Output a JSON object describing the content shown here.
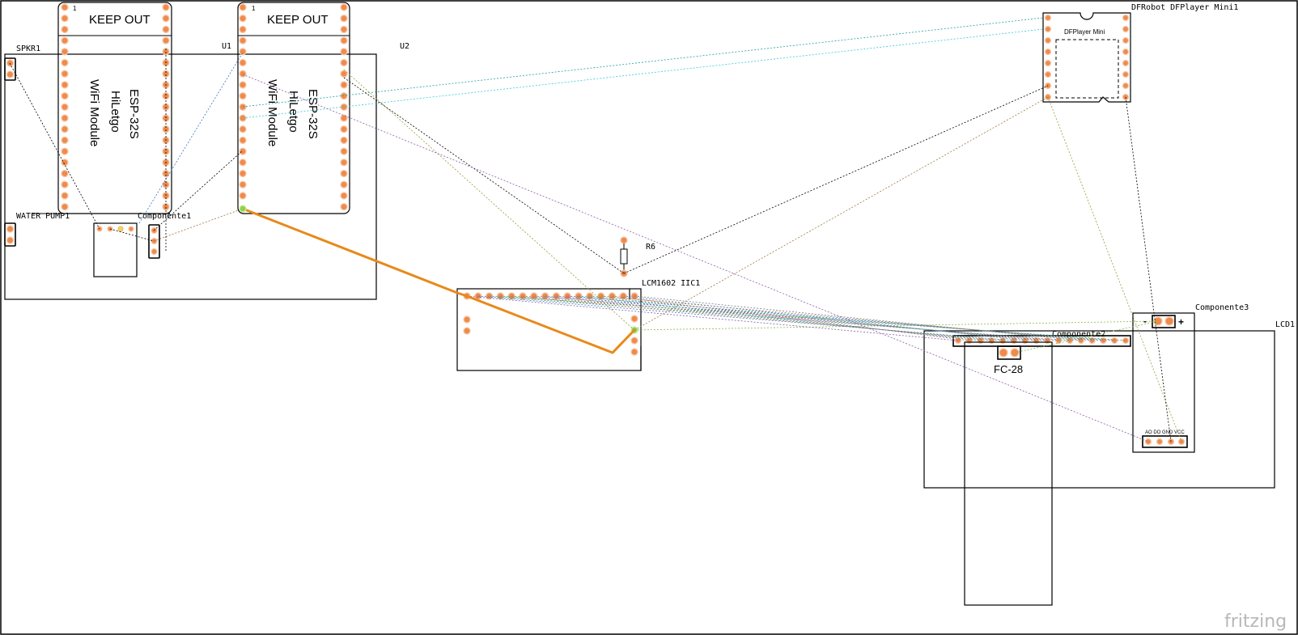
{
  "app": {
    "brand": "fritzing"
  },
  "labels": {
    "spkr": "SPKR1",
    "water_pump": "WATER PUMP1",
    "componente1": "Componente1",
    "u1": "U1",
    "u2": "U2",
    "r6": "R6",
    "lcm": "LCM1602 IIC1",
    "dfplayer": "DFRobot DFPlayer Mini1",
    "componente2": "Componente2",
    "componente3": "Componente3",
    "lcd": "LCD1"
  },
  "modules": {
    "esp_a": {
      "keep_out": "KEEP OUT",
      "pin1": "1",
      "line1": "ESP-32S",
      "line2": "HiLetgo",
      "line3": "WiFi Module"
    },
    "esp_b": {
      "keep_out": "KEEP OUT",
      "pin1": "1",
      "line1": "ESP-32S",
      "line2": "HiLetgo",
      "line3": "WiFi Module"
    }
  },
  "dfplayer_inner": "DFPlayer Mini",
  "fc28": "FC-28",
  "componente3_pins": {
    "minus": "-",
    "plus": "+",
    "row": "AO DO GND VCC"
  },
  "colors": {
    "pad": "#f08a4b",
    "pad_selected": "#8fd14f",
    "trace": "#e8891a",
    "brand": "#b8b8b8"
  }
}
